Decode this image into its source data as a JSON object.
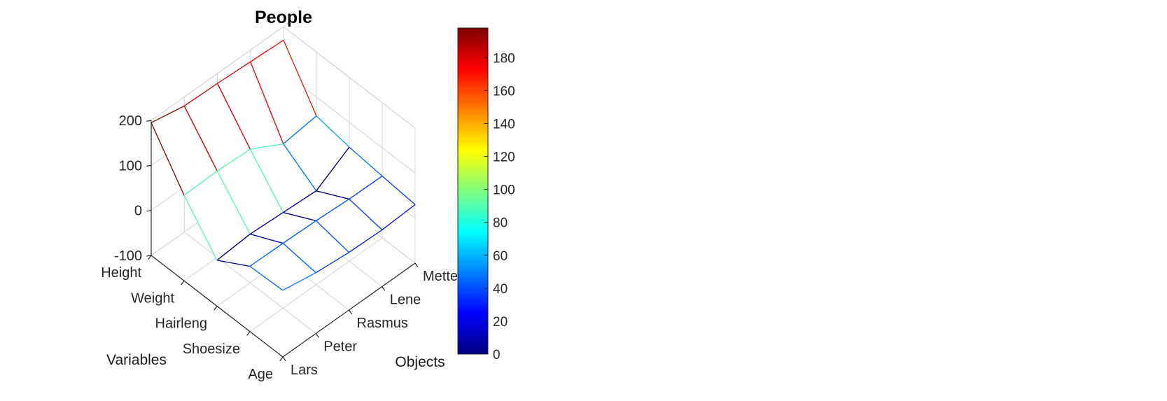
{
  "chart_data": {
    "type": "mesh3d",
    "title": "People",
    "x_axis": {
      "label": "Variables",
      "categories": [
        "Height",
        "Weight",
        "Hairleng",
        "Shoesize",
        "Age"
      ]
    },
    "y_axis": {
      "label": "Objects",
      "categories": [
        "Lars",
        "Peter",
        "Rasmus",
        "Lene",
        "Mette"
      ]
    },
    "z_axis": {
      "ticks": [
        -100,
        0,
        100,
        200
      ],
      "min": -100,
      "max": 200
    },
    "series": [
      {
        "name": "Height",
        "values": [
          195,
          180,
          178,
          174,
          170
        ]
      },
      {
        "name": "Weight",
        "values": [
          90,
          92,
          88,
          48,
          58
        ]
      },
      {
        "name": "Hairleng",
        "values": [
          2,
          8,
          4,
          0,
          45
        ]
      },
      {
        "name": "Shoesize",
        "values": [
          45,
          44,
          42,
          38,
          37
        ]
      },
      {
        "name": "Age",
        "values": [
          48,
          35,
          28,
          26,
          30
        ]
      }
    ],
    "colormap": "jet",
    "edge_color_mode": "flat",
    "face_color": "#ffffff",
    "clim": [
      0,
      198
    ],
    "colorbar": {
      "ticks": [
        0,
        20,
        40,
        60,
        80,
        100,
        120,
        140,
        160,
        180
      ]
    },
    "view": {
      "azimuth": -37.5,
      "elevation": 30
    },
    "grid": true,
    "colors": {
      "grid_line": "#d4d4d4",
      "axis_line": "#262626",
      "tick_text": "#262626"
    }
  }
}
